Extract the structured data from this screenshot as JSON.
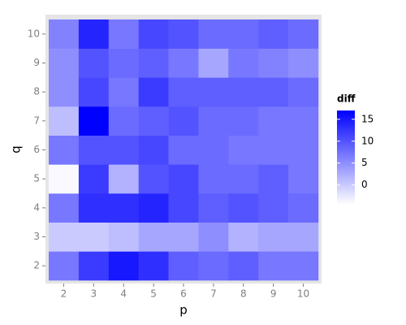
{
  "chart_data": {
    "type": "heatmap",
    "x_label": "p",
    "y_label": "q",
    "x": [
      2,
      3,
      4,
      5,
      6,
      7,
      8,
      9,
      10
    ],
    "y": [
      2,
      3,
      4,
      5,
      6,
      7,
      8,
      9,
      10
    ],
    "values": [
      [
        7,
        12,
        15,
        13,
        9,
        8,
        9,
        7,
        7
      ],
      [
        0,
        0,
        1,
        3,
        3,
        5,
        2,
        3,
        3
      ],
      [
        7,
        13,
        13,
        14,
        11,
        9,
        10,
        9,
        8
      ],
      [
        -4,
        12,
        2,
        10,
        11,
        8,
        8,
        9,
        7
      ],
      [
        7,
        10,
        10,
        11,
        8,
        8,
        7,
        7,
        7
      ],
      [
        1,
        17,
        8,
        9,
        10,
        8,
        8,
        7,
        7
      ],
      [
        5,
        11,
        7,
        12,
        9,
        9,
        9,
        9,
        8
      ],
      [
        5,
        10,
        8,
        9,
        7,
        3,
        7,
        6,
        5
      ],
      [
        6,
        14,
        7,
        11,
        10,
        8,
        8,
        9,
        8
      ]
    ],
    "colorbar": {
      "title": "diff",
      "ticks": [
        0,
        5,
        10,
        15
      ],
      "lim": [
        -4.5,
        17
      ],
      "low": "#ffffff",
      "high": "#0000ff"
    }
  }
}
